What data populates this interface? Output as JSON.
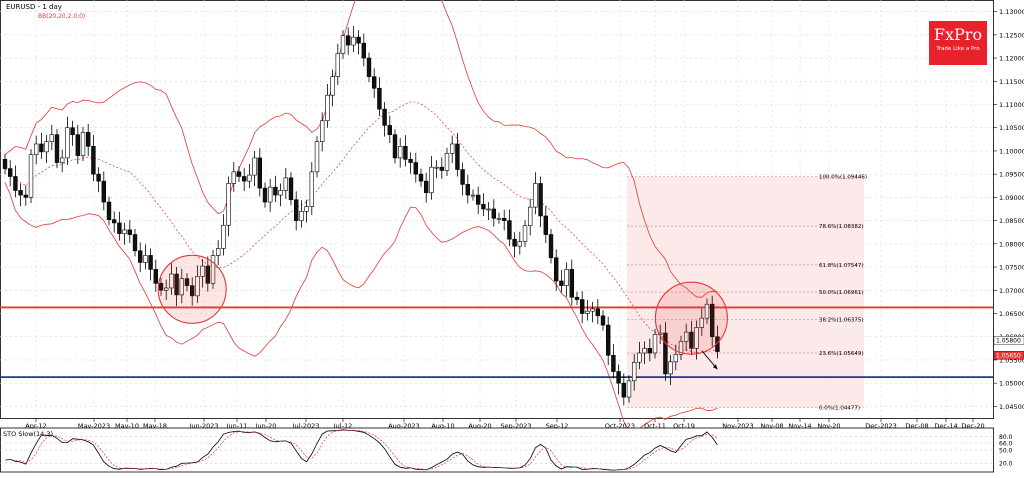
{
  "header": {
    "title": "EURUSD - 1 day",
    "indicator": "BB(20,20,2.0,0)"
  },
  "logo": {
    "brand": "FxPro",
    "tagline": "Trade Like a Pro"
  },
  "oscillator": {
    "label": "STO Slow(14,3)",
    "ticks": [
      "80.0",
      "66.0",
      "50.0",
      "20.0"
    ]
  },
  "colors": {
    "up": "#ffffff",
    "down": "#111111",
    "band": "#e53935",
    "support": "#e53935",
    "target": "#1a3a8a",
    "fib": "#f4c2c2"
  },
  "chart_data": {
    "type": "candlestick",
    "ylim": [
      1.0425,
      1.1325
    ],
    "y_ticks": [
      "1.13000",
      "1.12500",
      "1.12000",
      "1.11500",
      "1.11000",
      "1.10500",
      "1.10000",
      "1.09500",
      "1.09000",
      "1.08500",
      "1.08000",
      "1.07500",
      "1.07000",
      "1.06500",
      "1.06000",
      "1.05500",
      "1.05000",
      "1.04500"
    ],
    "x_ticks": [
      "Apr-12",
      "May-2023",
      "May-10",
      "May-18",
      "Jun-2023",
      "Jun-11",
      "Jun-20",
      "Jul-2023",
      "Jul-12",
      "Aug-2023",
      "Aug-10",
      "Aug-20",
      "Sep-2023",
      "Sep-12",
      "Oct-2023",
      "Oct-11",
      "Oct-19",
      "Nov-2023",
      "Nov-08",
      "Nov-14",
      "Nov-20",
      "Dec-2023",
      "Dec-08",
      "Dec-14",
      "Dec-20"
    ],
    "price_labels": [
      "1.05800",
      "1.05650"
    ],
    "support_level": 1.0663,
    "target_level": 1.0513,
    "fib_levels": [
      {
        "label": "100.0%(1.09446)",
        "value": 1.09446
      },
      {
        "label": "78.6%(1.08382)",
        "value": 1.08382
      },
      {
        "label": "61.8%(1.07547)",
        "value": 1.07547
      },
      {
        "label": "50.0%(1.06961)",
        "value": 1.06961
      },
      {
        "label": "38.2%(1.06375)",
        "value": 1.06375
      },
      {
        "label": "23.6%(1.05649)",
        "value": 1.05649
      },
      {
        "label": "0.0%(1.04477)",
        "value": 1.04477
      }
    ],
    "closes": [
      1.0962,
      1.0945,
      1.0915,
      1.0905,
      1.09,
      1.0992,
      1.1015,
      1.0998,
      1.102,
      1.1035,
      1.0975,
      1.0985,
      1.105,
      1.1035,
      1.099,
      1.104,
      1.101,
      1.095,
      1.0935,
      1.089,
      1.0852,
      1.0845,
      1.0822,
      1.083,
      1.082,
      1.0785,
      1.076,
      1.0775,
      1.0745,
      1.0715,
      1.07,
      1.0705,
      1.0735,
      1.069,
      1.0725,
      1.071,
      1.0688,
      1.073,
      1.0752,
      1.0715,
      1.0775,
      1.079,
      1.084,
      1.093,
      1.0955,
      1.0945,
      1.0935,
      1.0948,
      1.0985,
      1.092,
      1.089,
      1.0922,
      1.0905,
      1.0915,
      1.0942,
      1.0895,
      1.085,
      1.087,
      1.088,
      1.0955,
      1.102,
      1.1065,
      1.112,
      1.116,
      1.121,
      1.1248,
      1.1228,
      1.1245,
      1.1232,
      1.12,
      1.116,
      1.1135,
      1.109,
      1.1055,
      1.1035,
      1.0985,
      1.101,
      1.0982,
      1.0975,
      1.095,
      1.0935,
      1.091,
      1.0965,
      1.0965,
      1.0958,
      1.0995,
      1.1015,
      1.096,
      1.0928,
      1.0905,
      1.0905,
      1.0885,
      1.0875,
      1.0875,
      1.0855,
      1.0855,
      1.085,
      1.081,
      1.0795,
      1.0805,
      1.0839,
      1.0879,
      1.093,
      1.086,
      1.082,
      1.077,
      1.072,
      1.071,
      1.0745,
      1.0685,
      1.068,
      1.065,
      1.0655,
      1.066,
      1.0645,
      1.0625,
      1.056,
      1.0525,
      1.05,
      1.047,
      1.0505,
      1.0545,
      1.0565,
      1.0575,
      1.0565,
      1.0605,
      1.0608,
      1.052,
      1.0546,
      1.0562,
      1.059,
      1.061,
      1.0575,
      1.062,
      1.064,
      1.067,
      1.06,
      1.0568
    ]
  }
}
